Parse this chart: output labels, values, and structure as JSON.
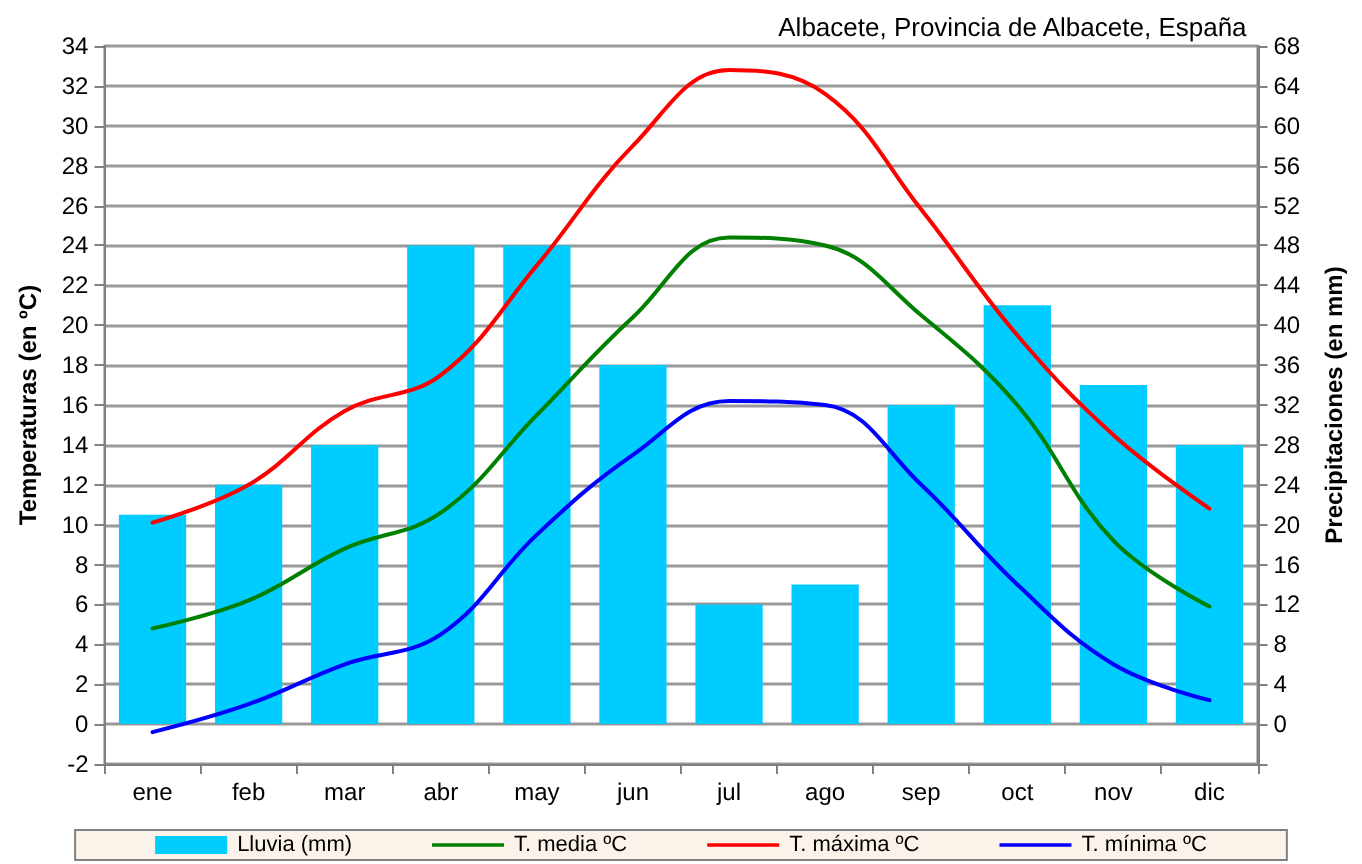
{
  "chart_data": {
    "type": "line",
    "title": "Albacete, Provincia de Albacete, España",
    "ylabel": "Temperaturas (en ºC)",
    "y2label": "Precipitaciones (en mm)",
    "categories": [
      "ene",
      "feb",
      "mar",
      "abr",
      "may",
      "jun",
      "jul",
      "ago",
      "sep",
      "oct",
      "nov",
      "dic"
    ],
    "series": [
      {
        "name": "Lluvia (mm)",
        "type": "bar",
        "axis": "y2",
        "color": "#00ccff",
        "values": [
          21,
          24,
          28,
          48,
          48,
          36,
          12,
          14,
          32,
          42,
          34,
          28
        ]
      },
      {
        "name": "T. media ºC",
        "color": "#008000",
        "values": [
          4.8,
          6.2,
          8.8,
          10.6,
          15.5,
          20.4,
          24.4,
          24,
          20.5,
          16,
          9.2,
          5.9
        ]
      },
      {
        "name": "T. máxima ºC",
        "color": "#ff0000",
        "values": [
          10.1,
          12,
          15.7,
          17.5,
          23,
          29,
          32.8,
          31.6,
          25.8,
          19.5,
          14.5,
          10.8
        ]
      },
      {
        "name": "T. mínima ºC",
        "color": "#0000ff",
        "values": [
          -0.4,
          1,
          3,
          4.5,
          9.5,
          13.5,
          16.2,
          16,
          12,
          7,
          3,
          1.2
        ]
      }
    ],
    "ylim": [
      -2,
      34
    ],
    "yticks": [
      -2,
      0,
      2,
      4,
      6,
      8,
      10,
      12,
      14,
      16,
      18,
      20,
      22,
      24,
      26,
      28,
      30,
      32,
      34
    ],
    "y2lim": [
      -4,
      68
    ],
    "y2ticks": [
      {
        "value": -4,
        "label": null
      },
      0,
      4,
      8,
      12,
      16,
      20,
      24,
      28,
      32,
      36,
      40,
      44,
      48,
      52,
      56,
      60,
      64,
      68
    ],
    "grid": "y",
    "legend": "bottom",
    "marker": "none",
    "line_style": "solid"
  }
}
